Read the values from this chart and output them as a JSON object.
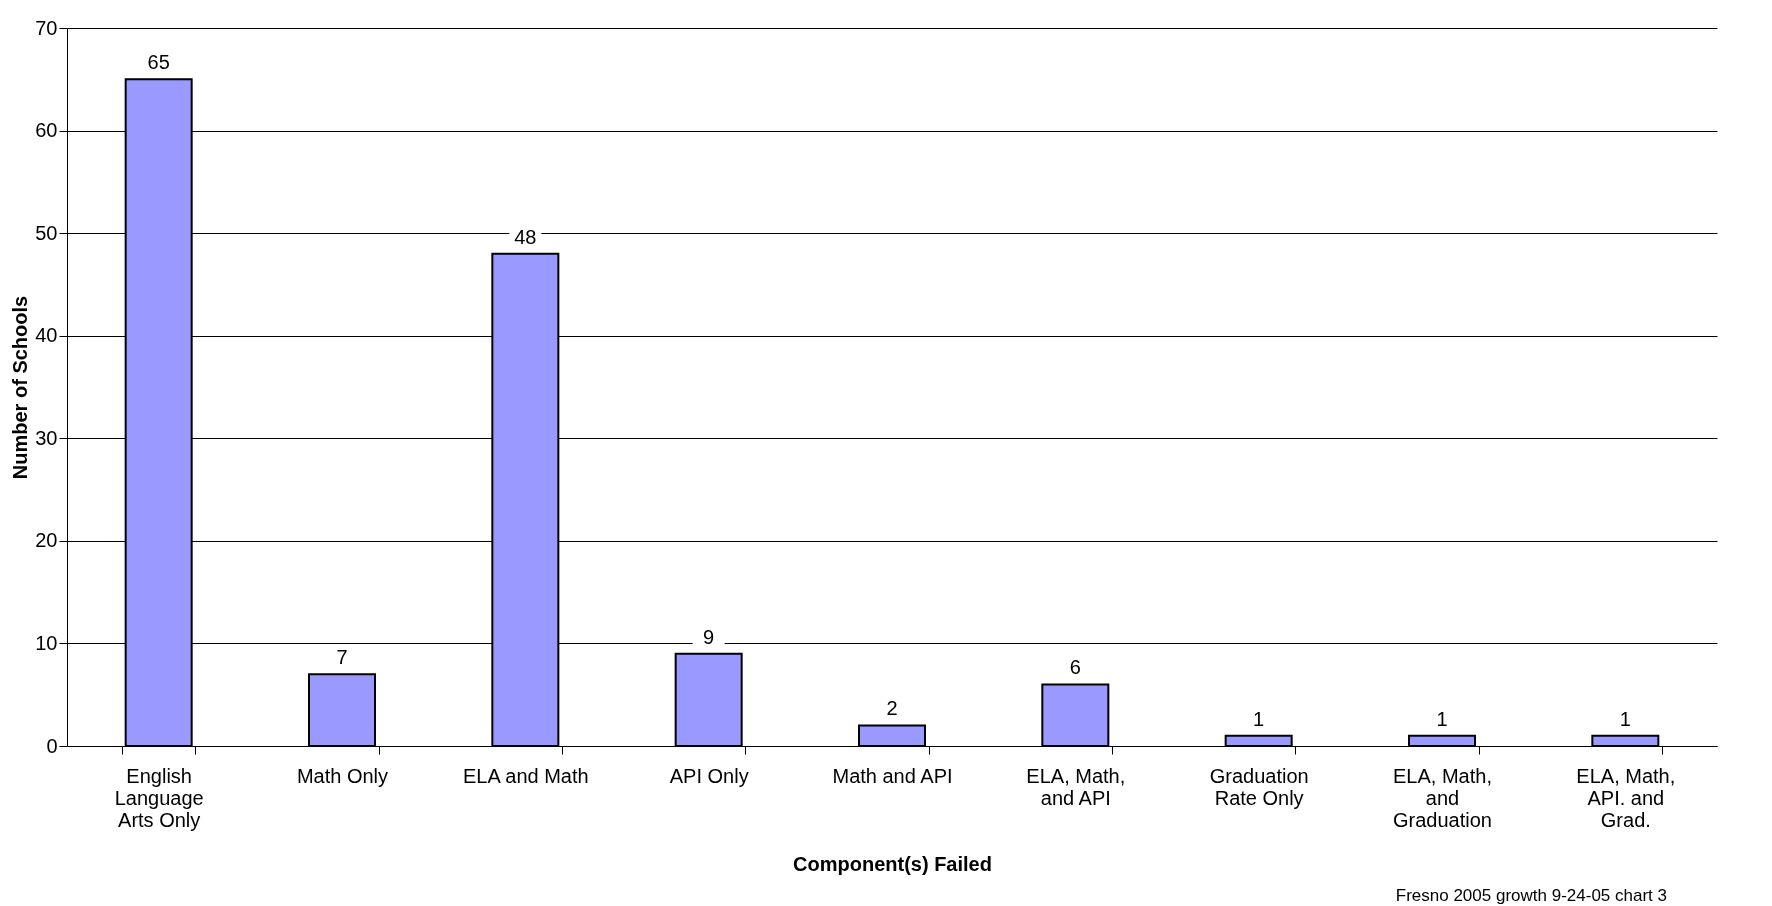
{
  "chart_data": {
    "type": "bar",
    "xlabel": "Component(s) Failed",
    "ylabel": "Number of Schools",
    "categories": [
      "English Language Arts Only",
      "Math Only",
      "ELA and Math",
      "API Only",
      "Math and API",
      "ELA, Math, and API",
      "Graduation Rate Only",
      "ELA, Math, and Graduation",
      "ELA, Math, API. and Grad."
    ],
    "values": [
      65,
      7,
      48,
      9,
      2,
      6,
      1,
      1,
      1
    ],
    "color": "#9999ff",
    "ylim": [
      0,
      70
    ],
    "yticks": [
      0,
      10,
      20,
      30,
      40,
      50,
      60,
      70
    ],
    "grid": "y",
    "data_labels": true,
    "annotations": [
      "Fresno 2005 growth 9-24-05 chart 3"
    ]
  }
}
